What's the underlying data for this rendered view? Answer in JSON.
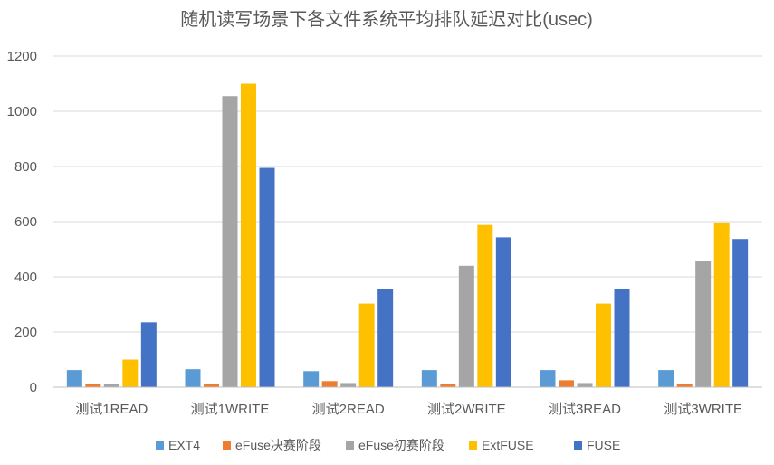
{
  "chart_data": {
    "type": "bar",
    "title": "随机读写场景下各文件系统平均排队延迟对比(usec)",
    "categories": [
      "测试1READ",
      "测试1WRITE",
      "测试2READ",
      "测试2WRITE",
      "测试3READ",
      "测试3WRITE"
    ],
    "series": [
      {
        "name": "EXT4",
        "color": "#5B9BD5",
        "values": [
          62,
          65,
          58,
          62,
          62,
          62
        ]
      },
      {
        "name": "eFuse决赛阶段",
        "color": "#ED7D31",
        "values": [
          12,
          10,
          22,
          12,
          25,
          10
        ]
      },
      {
        "name": "eFuse初赛阶段",
        "color": "#A5A5A5",
        "values": [
          12,
          1055,
          15,
          440,
          15,
          458
        ]
      },
      {
        "name": "ExtFUSE",
        "color": "#FFC000",
        "values": [
          100,
          1100,
          303,
          588,
          303,
          597
        ]
      },
      {
        "name": "FUSE",
        "color": "#4472C4",
        "values": [
          235,
          795,
          357,
          543,
          357,
          537
        ]
      }
    ],
    "yticks": [
      0,
      200,
      400,
      600,
      800,
      1000,
      1200
    ],
    "ylim": [
      0,
      1200
    ],
    "grid": true,
    "legend": "bottom"
  }
}
